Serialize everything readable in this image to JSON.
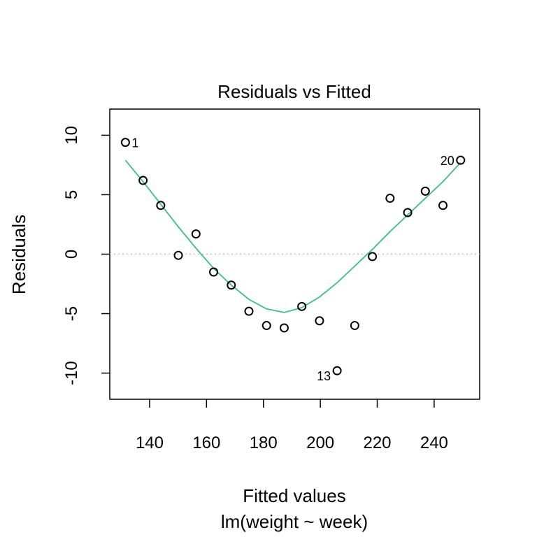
{
  "chart_data": {
    "type": "scatter",
    "title": "Residuals vs Fitted",
    "xlabel": "Fitted values",
    "xlabel_sub": "lm(weight ~ week)",
    "ylabel": "Residuals",
    "xlim": [
      126,
      256
    ],
    "ylim": [
      -12.2,
      12.2
    ],
    "xticks": [
      140,
      160,
      180,
      200,
      220,
      240
    ],
    "yticks": [
      10,
      5,
      0,
      -5,
      -10
    ],
    "reference_line": {
      "y": 0,
      "style": "dotted",
      "color": "#bdbdbd"
    },
    "smooth_color": "#3fbf7f",
    "point_color": "#000000",
    "points": [
      {
        "x": 131.5,
        "y": 9.4,
        "label": "1"
      },
      {
        "x": 137.7,
        "y": 6.2
      },
      {
        "x": 143.9,
        "y": 4.1
      },
      {
        "x": 150.1,
        "y": -0.1
      },
      {
        "x": 156.3,
        "y": 1.7
      },
      {
        "x": 162.5,
        "y": -1.5
      },
      {
        "x": 168.7,
        "y": -2.6
      },
      {
        "x": 174.9,
        "y": -4.8
      },
      {
        "x": 181.1,
        "y": -6.0
      },
      {
        "x": 187.3,
        "y": -6.2
      },
      {
        "x": 193.5,
        "y": -4.4
      },
      {
        "x": 199.7,
        "y": -5.6
      },
      {
        "x": 205.9,
        "y": -9.8,
        "label": "13"
      },
      {
        "x": 212.1,
        "y": -6.0
      },
      {
        "x": 218.3,
        "y": -0.2
      },
      {
        "x": 224.5,
        "y": 4.7
      },
      {
        "x": 230.7,
        "y": 3.5
      },
      {
        "x": 236.9,
        "y": 5.3
      },
      {
        "x": 243.1,
        "y": 4.1
      },
      {
        "x": 249.3,
        "y": 7.9,
        "label": "20"
      }
    ],
    "smooth": [
      [
        131.5,
        7.9
      ],
      [
        137.7,
        6.1
      ],
      [
        143.9,
        4.2
      ],
      [
        150.1,
        2.3
      ],
      [
        156.3,
        0.5
      ],
      [
        162.5,
        -1.2
      ],
      [
        168.7,
        -2.6
      ],
      [
        174.9,
        -3.8
      ],
      [
        181.1,
        -4.6
      ],
      [
        187.3,
        -4.9
      ],
      [
        193.5,
        -4.5
      ],
      [
        199.7,
        -3.6
      ],
      [
        205.9,
        -2.4
      ],
      [
        212.1,
        -1.0
      ],
      [
        218.3,
        0.4
      ],
      [
        224.5,
        1.9
      ],
      [
        230.7,
        3.3
      ],
      [
        236.9,
        4.7
      ],
      [
        243.1,
        6.1
      ],
      [
        249.3,
        7.7
      ]
    ]
  }
}
